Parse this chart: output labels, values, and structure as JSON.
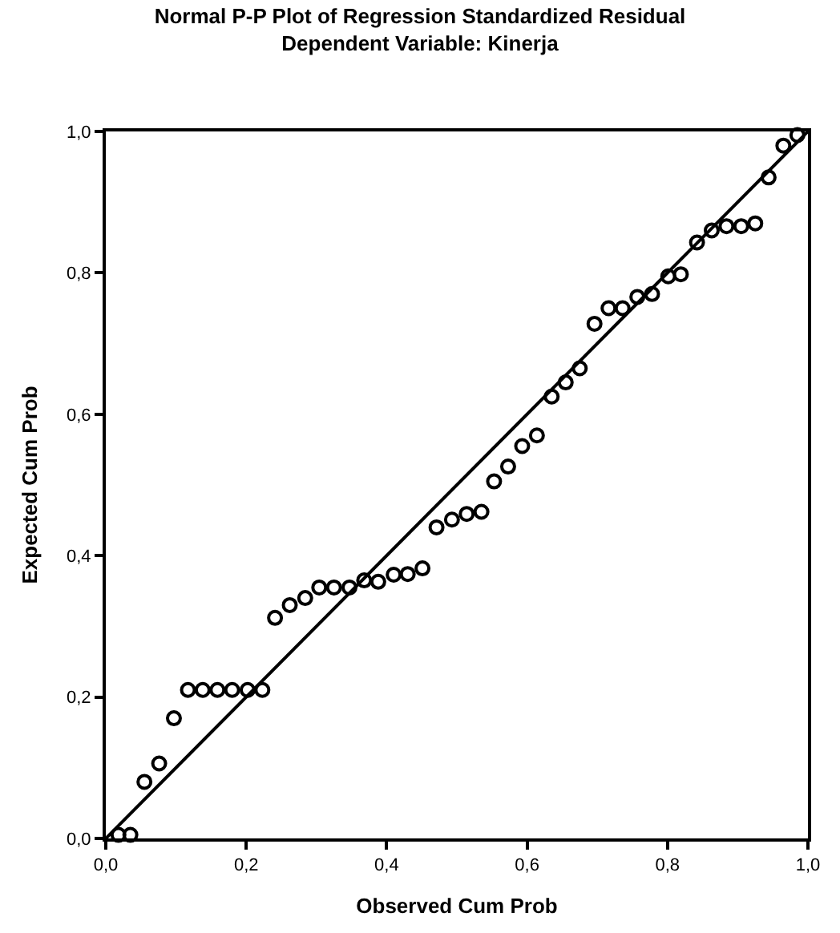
{
  "chart_data": {
    "type": "scatter",
    "title": "Normal P-P Plot of Regression Standardized Residual",
    "subtitle": "Dependent Variable: Kinerja",
    "xlabel": "Observed Cum Prob",
    "ylabel": "Expected Cum Prob",
    "xlim": [
      0,
      1
    ],
    "ylim": [
      0,
      1
    ],
    "xticks": [
      {
        "value": 0,
        "label": "0,0"
      },
      {
        "value": 0.2,
        "label": "0,2"
      },
      {
        "value": 0.4,
        "label": "0,4"
      },
      {
        "value": 0.6,
        "label": "0,6"
      },
      {
        "value": 0.8,
        "label": "0,8"
      },
      {
        "value": 1,
        "label": "1,0"
      }
    ],
    "yticks": [
      {
        "value": 0,
        "label": "0,0"
      },
      {
        "value": 0.2,
        "label": "0,2"
      },
      {
        "value": 0.4,
        "label": "0,4"
      },
      {
        "value": 0.6,
        "label": "0,6"
      },
      {
        "value": 0.8,
        "label": "0,8"
      },
      {
        "value": 1,
        "label": "1,0"
      }
    ],
    "grid": false,
    "marker": "circle",
    "series": [
      {
        "color": "#000000",
        "x": [
          0.018,
          0.035,
          0.055,
          0.076,
          0.097,
          0.117,
          0.138,
          0.159,
          0.18,
          0.202,
          0.223,
          0.241,
          0.262,
          0.284,
          0.304,
          0.325,
          0.347,
          0.368,
          0.388,
          0.41,
          0.43,
          0.451,
          0.471,
          0.493,
          0.514,
          0.535,
          0.553,
          0.573,
          0.593,
          0.614,
          0.635,
          0.655,
          0.675,
          0.696,
          0.716,
          0.736,
          0.757,
          0.778,
          0.801,
          0.819,
          0.842,
          0.863,
          0.884,
          0.905,
          0.925,
          0.944,
          0.965,
          0.985
        ],
        "values": [
          0.005,
          0.005,
          0.08,
          0.106,
          0.17,
          0.21,
          0.21,
          0.21,
          0.21,
          0.21,
          0.21,
          0.312,
          0.33,
          0.34,
          0.355,
          0.355,
          0.355,
          0.365,
          0.363,
          0.373,
          0.374,
          0.382,
          0.44,
          0.451,
          0.459,
          0.462,
          0.505,
          0.526,
          0.555,
          0.57,
          0.625,
          0.645,
          0.665,
          0.728,
          0.75,
          0.75,
          0.766,
          0.77,
          0.795,
          0.798,
          0.843,
          0.86,
          0.866,
          0.866,
          0.87,
          0.935,
          0.98,
          0.995
        ]
      },
      {
        "type": "line",
        "color": "#000000",
        "x": [
          0,
          1
        ],
        "values": [
          0,
          1
        ],
        "marker": "none"
      }
    ]
  }
}
